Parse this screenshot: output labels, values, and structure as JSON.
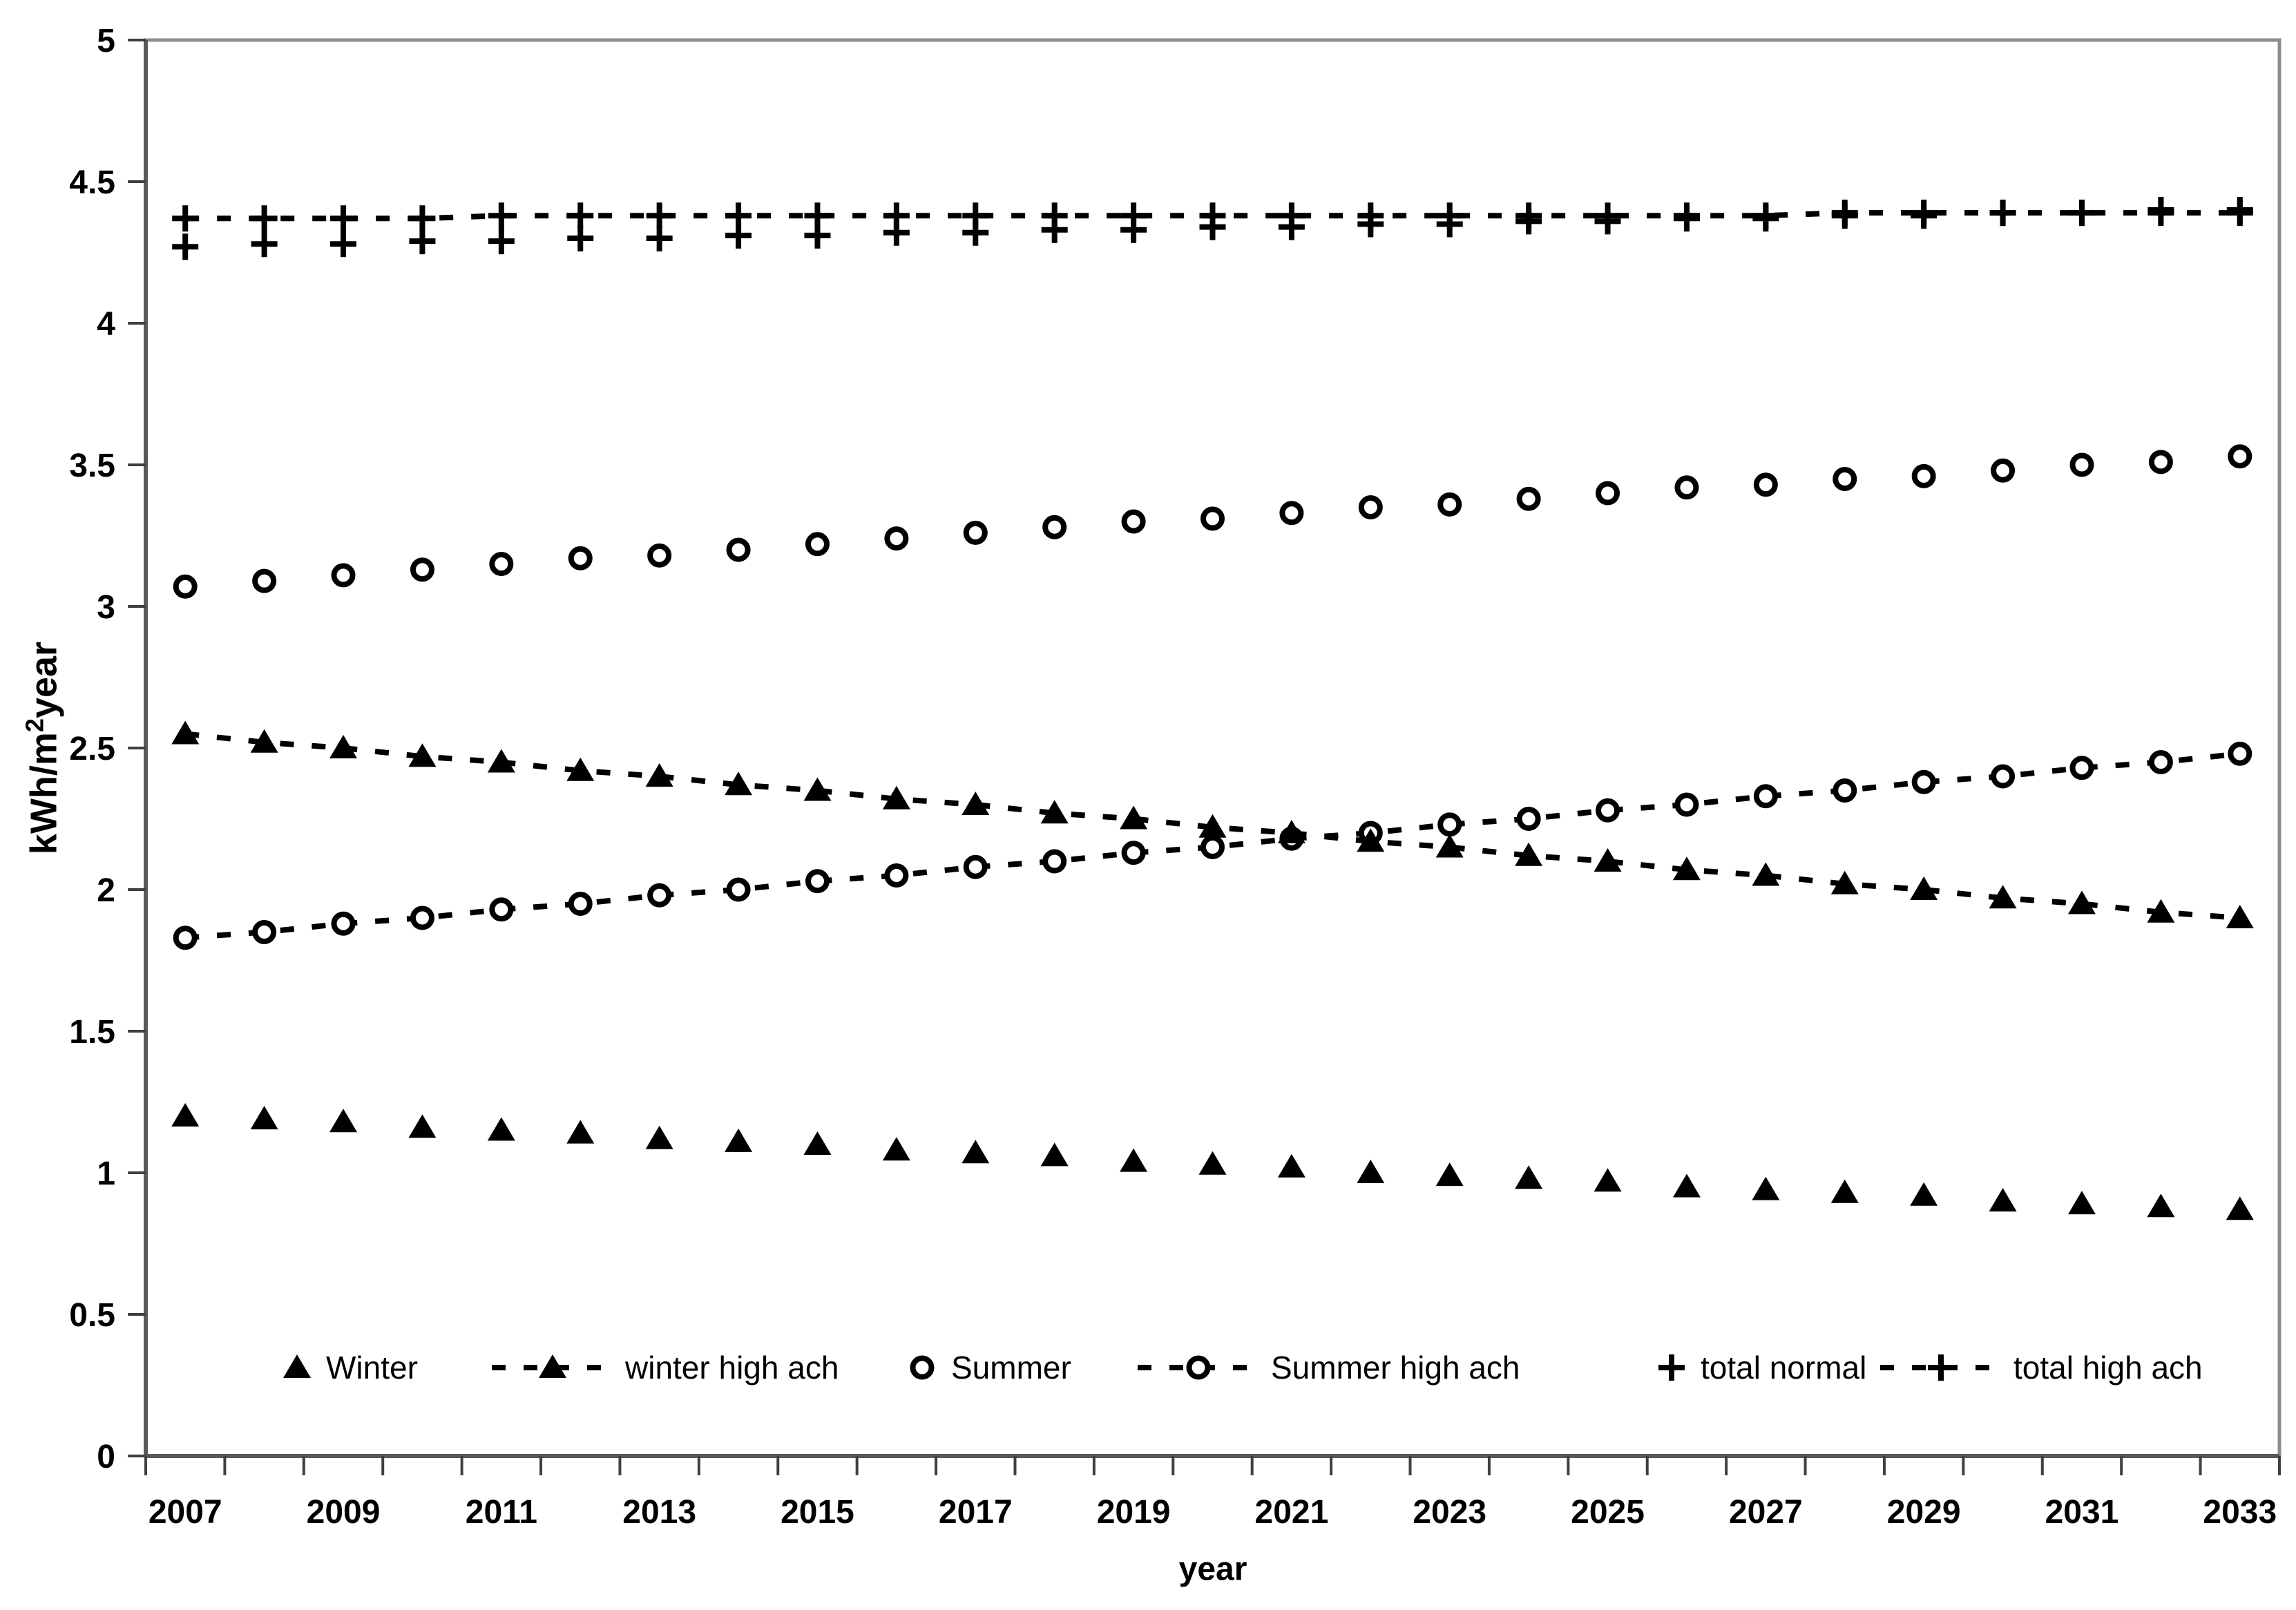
{
  "figure": {
    "xlabel": "year",
    "ylabel_full": "kWh/m2year",
    "ylabel_parts": {
      "prefix": "kWh/m",
      "sup": "2",
      "suffix": "year"
    }
  },
  "chart_data": {
    "type": "scatter",
    "title": "",
    "xlabel": "year",
    "ylabel": "kWh/m2year",
    "x": [
      2007,
      2008,
      2009,
      2010,
      2011,
      2012,
      2013,
      2014,
      2015,
      2016,
      2017,
      2018,
      2019,
      2020,
      2021,
      2022,
      2023,
      2024,
      2025,
      2026,
      2027,
      2028,
      2029,
      2030,
      2031,
      2032,
      2033
    ],
    "x_axis": {
      "label": "year",
      "tick_label_years": [
        2007,
        2009,
        2011,
        2013,
        2015,
        2017,
        2019,
        2021,
        2023,
        2025,
        2027,
        2029,
        2031,
        2033
      ],
      "tick_every_year": true
    },
    "y_axis": {
      "label": "kWh/m2year",
      "min": 0,
      "max": 5,
      "tick_step": 0.5,
      "tick_labels": [
        "0",
        "0.5",
        "1",
        "1.5",
        "2",
        "2.5",
        "3",
        "3.5",
        "4",
        "4.5",
        "5"
      ]
    },
    "grid": false,
    "legend_position": "bottom-inside",
    "colors": {
      "foreground": "#000000",
      "axis": "#595959",
      "border": "#8c8c8c",
      "background": "#ffffff"
    },
    "series": [
      {
        "name": "Winter",
        "marker": "triangle",
        "line": "none",
        "values": [
          1.2,
          1.19,
          1.18,
          1.16,
          1.15,
          1.14,
          1.12,
          1.11,
          1.1,
          1.08,
          1.07,
          1.06,
          1.04,
          1.03,
          1.02,
          1.0,
          0.99,
          0.98,
          0.97,
          0.95,
          0.94,
          0.93,
          0.92,
          0.9,
          0.89,
          0.88,
          0.87
        ]
      },
      {
        "name": "winter high ach",
        "marker": "triangle",
        "line": "dotted",
        "values": [
          2.55,
          2.52,
          2.5,
          2.47,
          2.45,
          2.42,
          2.4,
          2.37,
          2.35,
          2.32,
          2.3,
          2.27,
          2.25,
          2.22,
          2.2,
          2.17,
          2.15,
          2.12,
          2.1,
          2.07,
          2.05,
          2.02,
          2.0,
          1.97,
          1.95,
          1.92,
          1.9
        ]
      },
      {
        "name": "Summer",
        "marker": "circle",
        "line": "none",
        "values": [
          3.07,
          3.09,
          3.11,
          3.13,
          3.15,
          3.17,
          3.18,
          3.2,
          3.22,
          3.24,
          3.26,
          3.28,
          3.3,
          3.31,
          3.33,
          3.35,
          3.36,
          3.38,
          3.4,
          3.42,
          3.43,
          3.45,
          3.46,
          3.48,
          3.5,
          3.51,
          3.53
        ]
      },
      {
        "name": "Summer high ach",
        "marker": "circle",
        "line": "dotted",
        "values": [
          1.83,
          1.85,
          1.88,
          1.9,
          1.93,
          1.95,
          1.98,
          2.0,
          2.03,
          2.05,
          2.08,
          2.1,
          2.13,
          2.15,
          2.18,
          2.2,
          2.23,
          2.25,
          2.28,
          2.3,
          2.33,
          2.35,
          2.38,
          2.4,
          2.43,
          2.45,
          2.48
        ]
      },
      {
        "name": "total normal",
        "marker": "plus",
        "line": "none",
        "values": [
          4.27,
          4.28,
          4.28,
          4.29,
          4.29,
          4.3,
          4.3,
          4.31,
          4.31,
          4.32,
          4.32,
          4.33,
          4.33,
          4.34,
          4.34,
          4.35,
          4.35,
          4.36,
          4.36,
          4.37,
          4.37,
          4.38,
          4.38,
          4.39,
          4.39,
          4.4,
          4.4
        ]
      },
      {
        "name": "total high ach",
        "marker": "plus",
        "line": "dotted",
        "values": [
          4.37,
          4.37,
          4.37,
          4.37,
          4.38,
          4.38,
          4.38,
          4.38,
          4.38,
          4.38,
          4.38,
          4.38,
          4.38,
          4.38,
          4.38,
          4.38,
          4.38,
          4.38,
          4.38,
          4.38,
          4.38,
          4.39,
          4.39,
          4.39,
          4.39,
          4.39,
          4.39
        ]
      }
    ],
    "legend": {
      "entries": [
        "Winter",
        "winter high ach",
        "Summer",
        "Summer high ach",
        "total normal",
        "total high ach"
      ]
    }
  }
}
